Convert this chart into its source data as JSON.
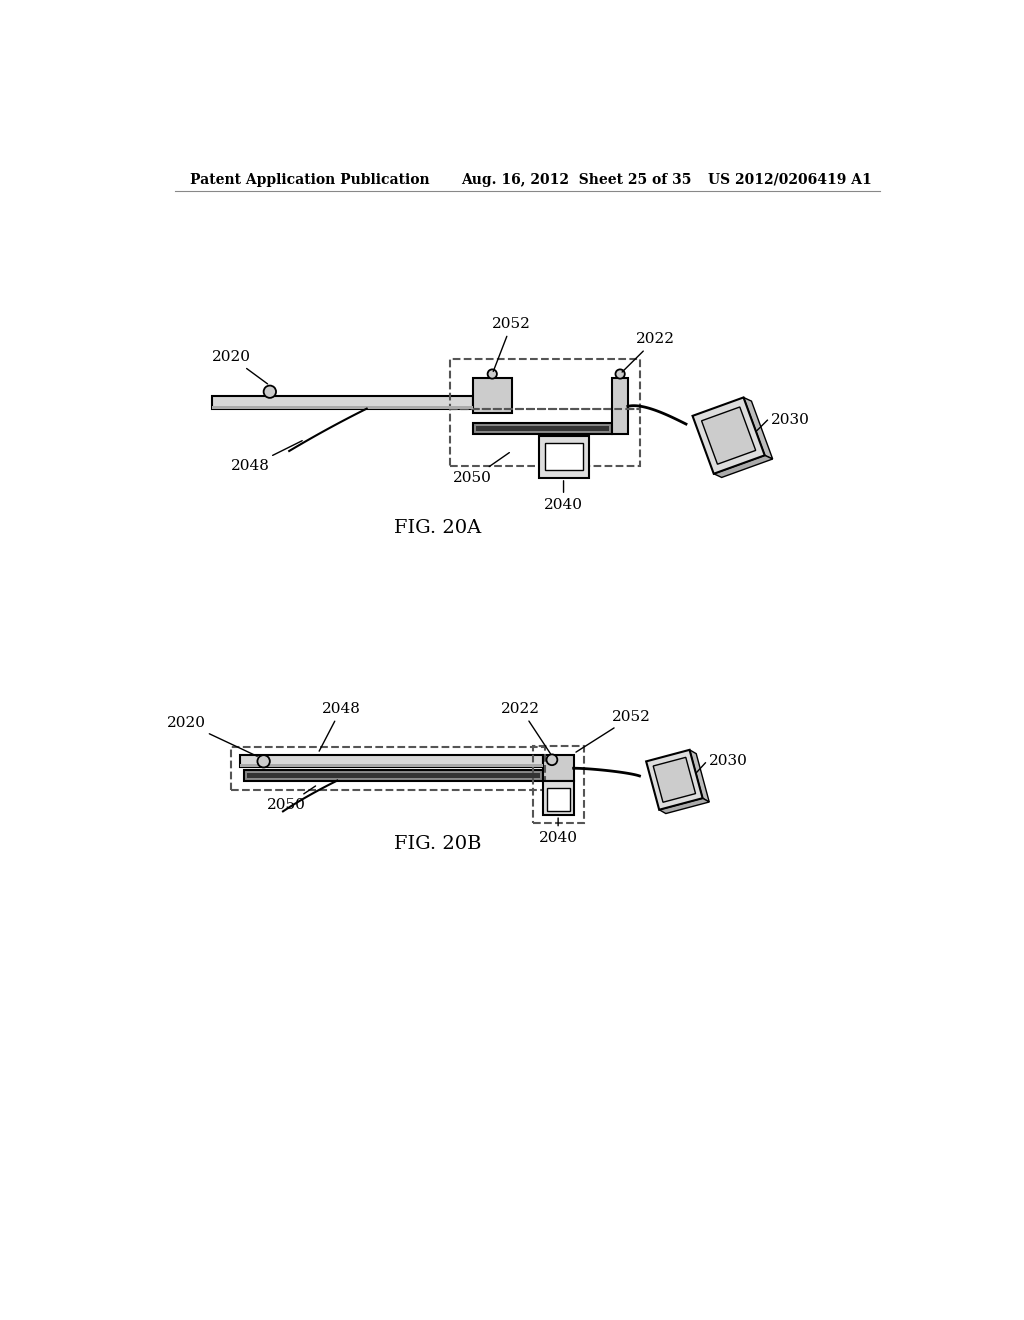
{
  "background_color": "#ffffff",
  "header_left": "Patent Application Publication",
  "header_center": "Aug. 16, 2012  Sheet 25 of 35",
  "header_right": "US 2012/0206419 A1",
  "fig_a_label": "FIG. 20A",
  "fig_b_label": "FIG. 20B",
  "label_color": "#000000",
  "line_color": "#000000"
}
